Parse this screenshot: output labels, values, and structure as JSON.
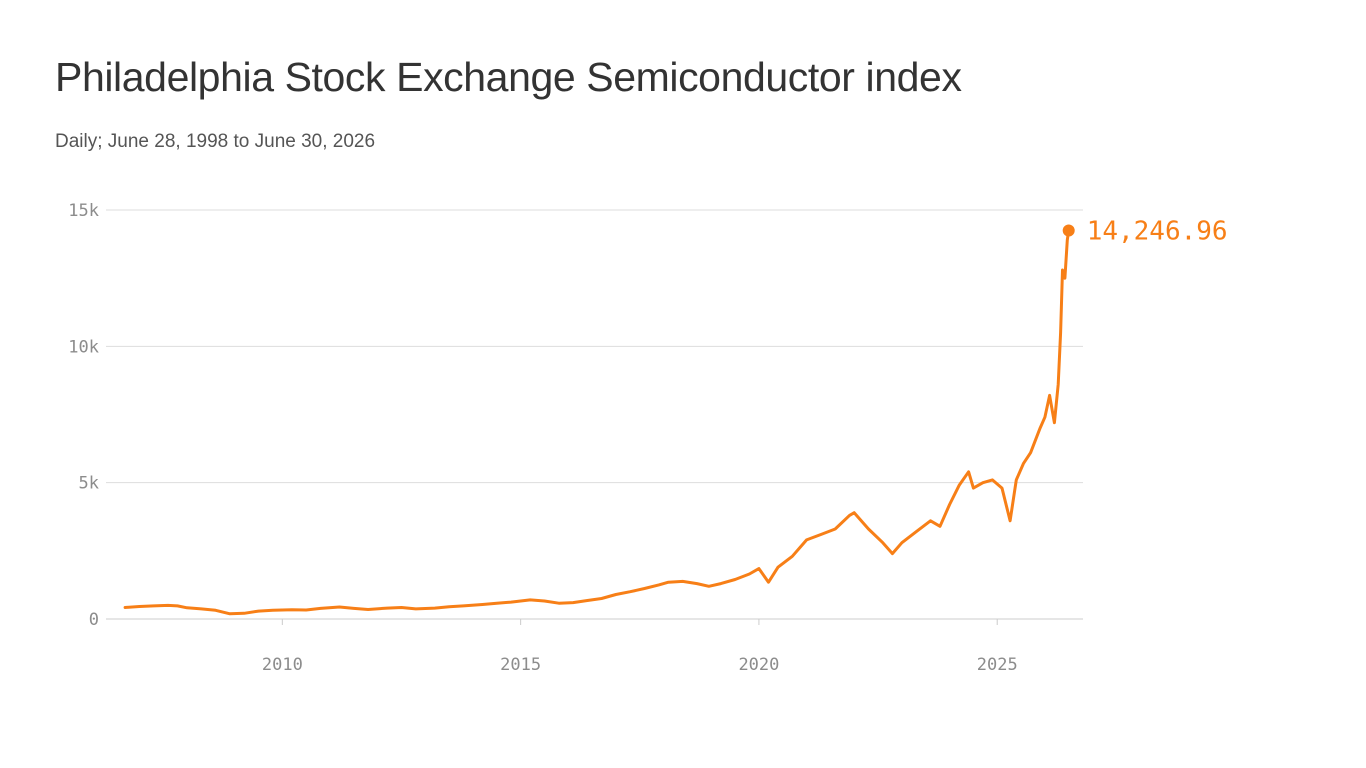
{
  "chart_data": {
    "type": "line",
    "title": "Philadelphia Stock Exchange Semiconductor index",
    "subtitle": "Daily; June 28, 1998 to June 30, 2026",
    "ylim": [
      0,
      15000
    ],
    "y_ticks": [
      {
        "value": 0,
        "label": "0"
      },
      {
        "value": 5000,
        "label": "5k"
      },
      {
        "value": 10000,
        "label": "10k"
      },
      {
        "value": 15000,
        "label": "15k"
      }
    ],
    "xlim": [
      2006.3,
      2026.8
    ],
    "x_ticks": [
      {
        "value": 2010,
        "label": "2010"
      },
      {
        "value": 2015,
        "label": "2015"
      },
      {
        "value": 2020,
        "label": "2020"
      },
      {
        "value": 2025,
        "label": "2025"
      }
    ],
    "grid": true,
    "line_color": "#f77f17",
    "grid_color": "#dddddd",
    "end_label": "14,246.96",
    "series": [
      {
        "x": [
          2006.7,
          2007.0,
          2007.3,
          2007.6,
          2007.8,
          2008.0,
          2008.3,
          2008.6,
          2008.9,
          2009.2,
          2009.5,
          2009.8,
          2010.2,
          2010.5,
          2010.8,
          2011.2,
          2011.5,
          2011.8,
          2012.2,
          2012.5,
          2012.8,
          2013.2,
          2013.5,
          2013.8,
          2014.2,
          2014.5,
          2014.8,
          2015.2,
          2015.5,
          2015.8,
          2016.1,
          2016.4,
          2016.7,
          2017.0,
          2017.3,
          2017.6,
          2017.9,
          2018.1,
          2018.4,
          2018.7,
          2018.95,
          2019.2,
          2019.5,
          2019.8,
          2020.0,
          2020.2,
          2020.4,
          2020.7,
          2021.0,
          2021.3,
          2021.6,
          2021.9,
          2022.0,
          2022.3,
          2022.6,
          2022.8,
          2023.0,
          2023.3,
          2023.6,
          2023.8,
          2024.0,
          2024.2,
          2024.4,
          2024.5,
          2024.7,
          2024.9,
          2025.1,
          2025.27,
          2025.4,
          2025.55,
          2025.7,
          2025.9,
          2026.0,
          2026.1,
          2026.2,
          2026.28,
          2026.33,
          2026.37,
          2026.42,
          2026.47,
          2026.5
        ],
        "values": [
          420,
          460,
          480,
          500,
          480,
          410,
          370,
          320,
          190,
          210,
          290,
          320,
          340,
          330,
          390,
          440,
          390,
          350,
          400,
          420,
          370,
          400,
          450,
          480,
          530,
          580,
          620,
          700,
          660,
          580,
          600,
          680,
          750,
          900,
          1000,
          1120,
          1250,
          1350,
          1380,
          1300,
          1200,
          1300,
          1450,
          1650,
          1850,
          1350,
          1900,
          2300,
          2900,
          3100,
          3300,
          3800,
          3900,
          3300,
          2800,
          2400,
          2800,
          3200,
          3600,
          3400,
          4200,
          4900,
          5400,
          4800,
          5000,
          5100,
          4800,
          3600,
          5100,
          5700,
          6100,
          7000,
          7400,
          8200,
          7200,
          8600,
          10500,
          12800,
          12500,
          13900,
          14246.96
        ]
      }
    ]
  }
}
